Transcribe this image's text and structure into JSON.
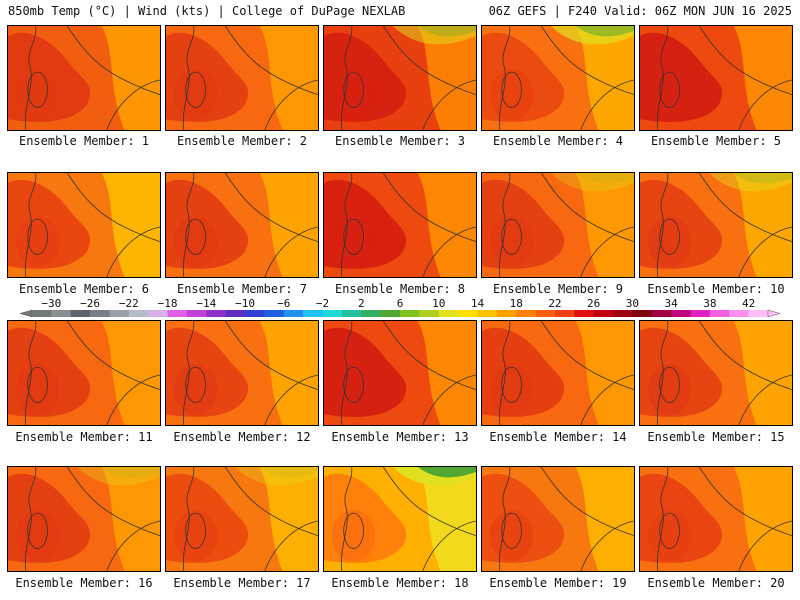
{
  "header": {
    "left": "850mb Temp (°C) | Wind (kts) | College of DuPage NEXLAB",
    "right": "06Z GEFS | F240 Valid: 06Z MON JUN 16 2025"
  },
  "panels": [
    {
      "label": "Ensemble Member: 1",
      "palette": [
        "#e23a12",
        "#f25e10",
        "#ffa000"
      ],
      "hot": 0.9,
      "cool": 0.0
    },
    {
      "label": "Ensemble Member: 2",
      "palette": [
        "#e23a12",
        "#f76810",
        "#ffa000"
      ],
      "hot": 0.7,
      "cool": 0.0
    },
    {
      "label": "Ensemble Member: 3",
      "palette": [
        "#d62010",
        "#e8400e",
        "#ff8a00"
      ],
      "hot": 0.9,
      "cool": 0.3
    },
    {
      "label": "Ensemble Member: 4",
      "palette": [
        "#e84010",
        "#f87010",
        "#ffb000"
      ],
      "hot": 0.5,
      "cool": 0.5
    },
    {
      "label": "Ensemble Member: 5",
      "palette": [
        "#d62010",
        "#ee4a10",
        "#ff9000"
      ],
      "hot": 1.0,
      "cool": 0.0
    },
    {
      "label": "Ensemble Member: 6",
      "palette": [
        "#e84010",
        "#f87810",
        "#ffc000"
      ],
      "hot": 0.7,
      "cool": 0.0
    },
    {
      "label": "Ensemble Member: 7",
      "palette": [
        "#e23a12",
        "#f87010",
        "#ffac00"
      ],
      "hot": 0.7,
      "cool": 0.0
    },
    {
      "label": "Ensemble Member: 8",
      "palette": [
        "#d62010",
        "#ee4a10",
        "#ff9000"
      ],
      "hot": 0.9,
      "cool": 0.0
    },
    {
      "label": "Ensemble Member: 9",
      "palette": [
        "#e23a12",
        "#f76810",
        "#ffa000"
      ],
      "hot": 0.7,
      "cool": 0.1
    },
    {
      "label": "Ensemble Member: 10",
      "palette": [
        "#e23a12",
        "#f87010",
        "#ffb000"
      ],
      "hot": 0.6,
      "cool": 0.2
    },
    {
      "label": "Ensemble Member: 11",
      "palette": [
        "#e23a12",
        "#f76810",
        "#ffa000"
      ],
      "hot": 0.7,
      "cool": 0.0
    },
    {
      "label": "Ensemble Member: 12",
      "palette": [
        "#e23a12",
        "#f87010",
        "#ffac00"
      ],
      "hot": 0.6,
      "cool": 0.0
    },
    {
      "label": "Ensemble Member: 13",
      "palette": [
        "#d62010",
        "#ee4a10",
        "#ff9000"
      ],
      "hot": 1.0,
      "cool": 0.0
    },
    {
      "label": "Ensemble Member: 14",
      "palette": [
        "#e23a12",
        "#f76810",
        "#ffa000"
      ],
      "hot": 0.8,
      "cool": 0.0
    },
    {
      "label": "Ensemble Member: 15",
      "palette": [
        "#e23a12",
        "#f87010",
        "#ffac00"
      ],
      "hot": 0.6,
      "cool": 0.0
    },
    {
      "label": "Ensemble Member: 16",
      "palette": [
        "#e23a12",
        "#f76810",
        "#ffa000"
      ],
      "hot": 0.7,
      "cool": 0.1
    },
    {
      "label": "Ensemble Member: 17",
      "palette": [
        "#e84010",
        "#f87810",
        "#ffb800"
      ],
      "hot": 0.5,
      "cool": 0.1
    },
    {
      "label": "Ensemble Member: 18",
      "palette": [
        "#ff6a10",
        "#ffb000",
        "#f0e020"
      ],
      "hot": 0.3,
      "cool": 1.0
    },
    {
      "label": "Ensemble Member: 19",
      "palette": [
        "#e84010",
        "#f87810",
        "#ffb800"
      ],
      "hot": 0.4,
      "cool": 0.0
    },
    {
      "label": "Ensemble Member: 20",
      "palette": [
        "#e84010",
        "#f87010",
        "#ffac00"
      ],
      "hot": 0.8,
      "cool": 0.0
    }
  ],
  "colorbar": {
    "labels": [
      "−30",
      "−26",
      "−22",
      "−18",
      "−14",
      "−10",
      "−6",
      "−2",
      "2",
      "6",
      "10",
      "14",
      "18",
      "22",
      "26",
      "30",
      "34",
      "38",
      "42"
    ],
    "colors": [
      "#707878",
      "#8a9090",
      "#5e6468",
      "#7a8088",
      "#9aa0a8",
      "#b8bcc8",
      "#d8b0e8",
      "#e060e8",
      "#c040d8",
      "#9030c8",
      "#6030c0",
      "#3040d0",
      "#2060e0",
      "#2090f0",
      "#20c0f0",
      "#20d8d8",
      "#20c0a0",
      "#30b060",
      "#50a830",
      "#80c020",
      "#b0d020",
      "#e0e020",
      "#ffe000",
      "#ffc000",
      "#ffa000",
      "#ff8000",
      "#ff6010",
      "#f04010",
      "#e01010",
      "#c00010",
      "#a00010",
      "#800010",
      "#a00040",
      "#c00080",
      "#e020c0",
      "#f060e0",
      "#ff90f0",
      "#ffc0f8"
    ]
  }
}
